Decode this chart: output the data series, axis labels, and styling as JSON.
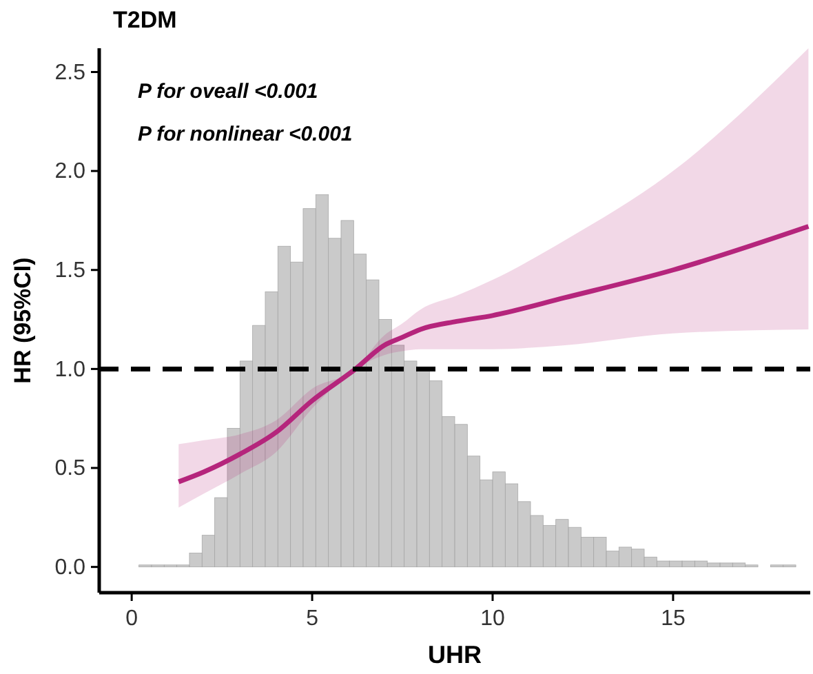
{
  "chart_data": {
    "type": "line",
    "title": "T2DM",
    "xlabel": "UHR",
    "ylabel": "HR (95%CI)",
    "annotations": [
      "P for oveall <0.001",
      "P for nonlinear <0.001"
    ],
    "xlim": [
      -0.9,
      18.8
    ],
    "ylim": [
      -0.13,
      2.62
    ],
    "xticks": [
      0,
      5,
      10,
      15
    ],
    "yticks": [
      {
        "value": 0,
        "label": "0.0"
      },
      {
        "value": 0.5,
        "label": "0.5"
      },
      {
        "value": 1,
        "label": "1.0"
      },
      {
        "value": 1.5,
        "label": "1.5"
      },
      {
        "value": 2,
        "label": "2.0"
      },
      {
        "value": 2.5,
        "label": "2.5"
      }
    ],
    "ref_lines": [
      {
        "axis": "y",
        "value": 1,
        "color": "#000000",
        "line_style": "dashed"
      }
    ],
    "series": [
      {
        "type": "histogram",
        "color": "#bdbdbd",
        "bins": [
          0.2,
          0.55,
          0.9,
          1.25,
          1.6,
          1.95,
          2.3,
          2.65,
          3.0,
          3.35,
          3.7,
          4.05,
          4.4,
          4.75,
          5.1,
          5.45,
          5.8,
          6.15,
          6.5,
          6.85,
          7.2,
          7.55,
          7.9,
          8.25,
          8.6,
          8.95,
          9.3,
          9.65,
          10.0,
          10.35,
          10.7,
          11.05,
          11.4,
          11.75,
          12.1,
          12.45,
          12.8,
          13.15,
          13.5,
          13.85,
          14.2,
          14.55,
          14.9,
          15.25,
          15.6,
          15.95,
          16.3,
          16.65,
          17.0,
          17.35,
          17.7,
          18.05,
          18.4,
          18.75
        ],
        "values": [
          0.01,
          0.01,
          0.01,
          0.01,
          0.07,
          0.16,
          0.35,
          0.7,
          1.04,
          1.22,
          1.39,
          1.62,
          1.54,
          1.81,
          1.88,
          1.66,
          1.75,
          1.58,
          1.45,
          1.25,
          1.12,
          1.04,
          0.99,
          0.94,
          0.76,
          0.72,
          0.56,
          0.44,
          0.48,
          0.42,
          0.33,
          0.26,
          0.21,
          0.24,
          0.2,
          0.15,
          0.15,
          0.08,
          0.1,
          0.09,
          0.05,
          0.03,
          0.03,
          0.03,
          0.03,
          0.02,
          0.02,
          0.02,
          0.01,
          0.0,
          0.01,
          0.01,
          0.0
        ]
      },
      {
        "type": "line",
        "color": "#b5257c",
        "x": [
          1.3,
          2,
          3,
          4,
          5,
          6.2,
          7,
          7.5,
          8,
          9,
          10,
          12,
          15,
          18.75
        ],
        "values": [
          0.43,
          0.48,
          0.57,
          0.68,
          0.84,
          1.0,
          1.12,
          1.16,
          1.2,
          1.24,
          1.27,
          1.36,
          1.5,
          1.72
        ],
        "lower": [
          0.3,
          0.37,
          0.47,
          0.58,
          0.8,
          1.0,
          1.07,
          1.09,
          1.1,
          1.1,
          1.1,
          1.12,
          1.18,
          1.2
        ],
        "upper": [
          0.62,
          0.64,
          0.67,
          0.74,
          0.9,
          1.0,
          1.17,
          1.23,
          1.3,
          1.37,
          1.45,
          1.65,
          2.0,
          2.62
        ]
      }
    ]
  }
}
